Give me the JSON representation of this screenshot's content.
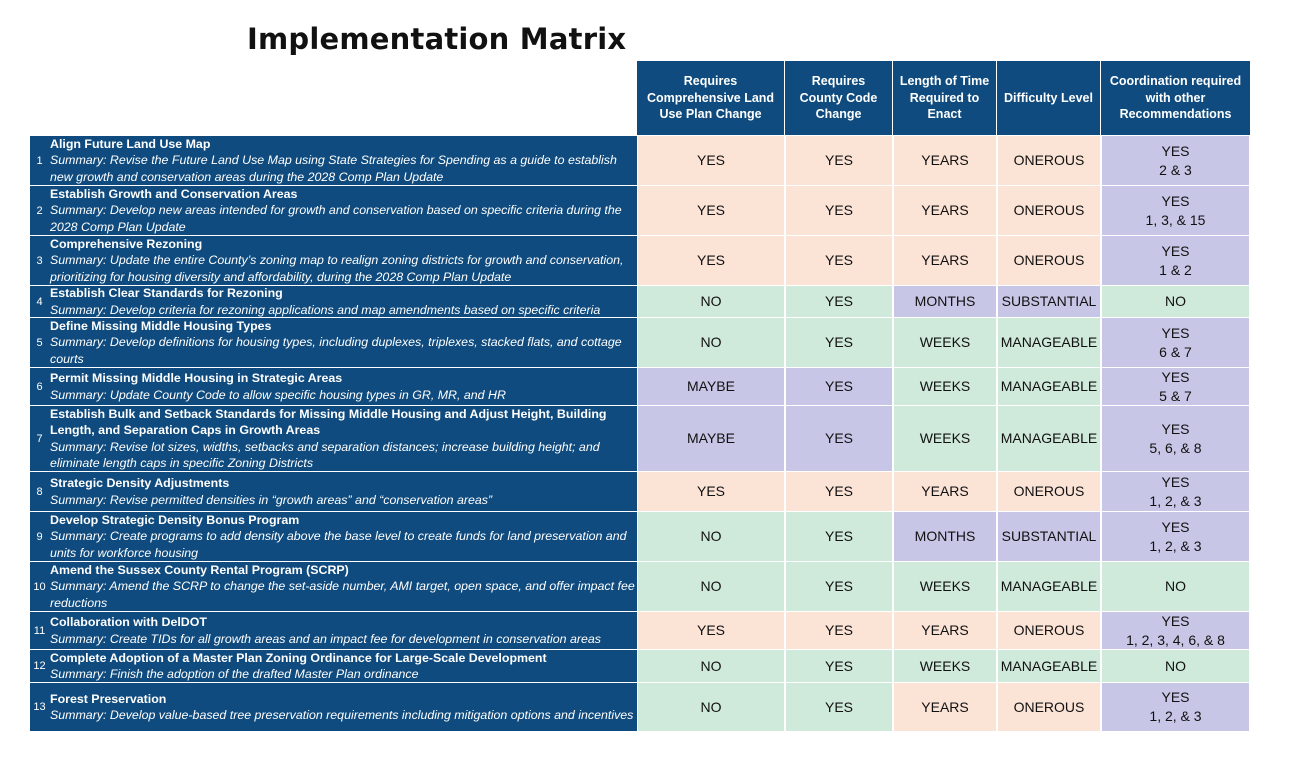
{
  "title": "Implementation Matrix",
  "headers": [
    "Requires Comprehensive Land Use Plan Change",
    "Requires County Code Change",
    "Length of Time Required to Enact",
    "Difficulty Level",
    "Coordination required with other Recommendations"
  ],
  "colors": {
    "header": "#0f4b7e",
    "pink": "#fbe3d6",
    "green": "#cfe9da",
    "purple": "#c7c6e6"
  },
  "rows": [
    {
      "num": "1",
      "title": "Align Future Land Use Map",
      "summary": "Summary: Revise the Future Land Use Map using State Strategies for Spending as a guide to establish new growth and conservation areas during the 2028 Comp Plan Update",
      "plan": "YES",
      "code": "YES",
      "time": "YEARS",
      "difficulty": "ONEROUS",
      "coord_a": "YES",
      "coord_b": "2 & 3"
    },
    {
      "num": "2",
      "title": "Establish Growth and Conservation Areas",
      "summary": "Summary: Develop new areas intended for growth and conservation based on specific criteria during the 2028 Comp Plan Update",
      "plan": "YES",
      "code": "YES",
      "time": "YEARS",
      "difficulty": "ONEROUS",
      "coord_a": "YES",
      "coord_b": "1, 3, & 15"
    },
    {
      "num": "3",
      "title": "Comprehensive Rezoning",
      "summary": "Summary: Update the entire County’s zoning map to realign zoning districts for growth and conservation, prioritizing for housing diversity and affordability, during the 2028 Comp Plan Update",
      "plan": "YES",
      "code": "YES",
      "time": "YEARS",
      "difficulty": "ONEROUS",
      "coord_a": "YES",
      "coord_b": "1 & 2"
    },
    {
      "num": "4",
      "title": "Establish Clear Standards for Rezoning",
      "summary": "Summary: Develop criteria for rezoning applications and map amendments based on specific criteria",
      "plan": "NO",
      "code": "YES",
      "time": "MONTHS",
      "difficulty": "SUBSTANTIAL",
      "coord_a": "NO",
      "coord_b": ""
    },
    {
      "num": "5",
      "title": "Define Missing Middle Housing Types",
      "summary": "Summary: Develop definitions for housing types, including duplexes, triplexes, stacked flats, and cottage courts",
      "plan": "NO",
      "code": "YES",
      "time": "WEEKS",
      "difficulty": "MANAGEABLE",
      "coord_a": "YES",
      "coord_b": "6 & 7"
    },
    {
      "num": "6",
      "title": "Permit Missing Middle Housing in Strategic Areas",
      "summary": "Summary: Update County Code to allow specific housing types in GR, MR, and HR",
      "plan": "MAYBE",
      "code": "YES",
      "time": "WEEKS",
      "difficulty": "MANAGEABLE",
      "coord_a": "YES",
      "coord_b": "5 & 7"
    },
    {
      "num": "7",
      "title": "Establish Bulk and Setback Standards for Missing Middle Housing and Adjust Height, Building Length, and Separation Caps in Growth Areas",
      "summary": "Summary: Revise lot sizes, widths, setbacks and separation distances; increase building height; and eliminate length caps in specific Zoning Districts",
      "plan": "MAYBE",
      "code": "YES",
      "time": "WEEKS",
      "difficulty": "MANAGEABLE",
      "coord_a": "YES",
      "coord_b": "5, 6, & 8"
    },
    {
      "num": "8",
      "title": "Strategic Density Adjustments",
      "summary": "Summary: Revise permitted densities in “growth areas” and “conservation areas”",
      "plan": "YES",
      "code": "YES",
      "time": "YEARS",
      "difficulty": "ONEROUS",
      "coord_a": "YES",
      "coord_b": "1, 2, & 3"
    },
    {
      "num": "9",
      "title": "Develop Strategic Density Bonus Program",
      "summary": "Summary: Create programs to add density above the base level to create funds for land preservation and units for workforce housing",
      "plan": "NO",
      "code": "YES",
      "time": "MONTHS",
      "difficulty": "SUBSTANTIAL",
      "coord_a": "YES",
      "coord_b": "1, 2, & 3"
    },
    {
      "num": "10",
      "title": "Amend the Sussex County Rental Program (SCRP)",
      "summary": "Summary: Amend the SCRP to change the set-aside number, AMI target, open space, and offer impact fee reductions",
      "plan": "NO",
      "code": "YES",
      "time": "WEEKS",
      "difficulty": "MANAGEABLE",
      "coord_a": "NO",
      "coord_b": ""
    },
    {
      "num": "11",
      "title": "Collaboration with DelDOT",
      "summary": "Summary: Create TIDs for all growth areas and an impact fee for development in conservation areas",
      "plan": "YES",
      "code": "YES",
      "time": "YEARS",
      "difficulty": "ONEROUS",
      "coord_a": "YES",
      "coord_b": "1, 2, 3, 4, 6, & 8"
    },
    {
      "num": "12",
      "title": "Complete Adoption of a Master Plan Zoning Ordinance for Large-Scale Development",
      "summary": "Summary: Finish the adoption of the drafted Master Plan ordinance",
      "plan": "NO",
      "code": "YES",
      "time": "WEEKS",
      "difficulty": "MANAGEABLE",
      "coord_a": "NO",
      "coord_b": ""
    },
    {
      "num": "13",
      "title": "Forest Preservation",
      "summary": "Summary: Develop value-based tree preservation requirements including mitigation options and incentives",
      "plan": "NO",
      "code": "YES",
      "time": "YEARS",
      "difficulty": "ONEROUS",
      "coord_a": "YES",
      "coord_b": "1, 2, & 3"
    }
  ]
}
